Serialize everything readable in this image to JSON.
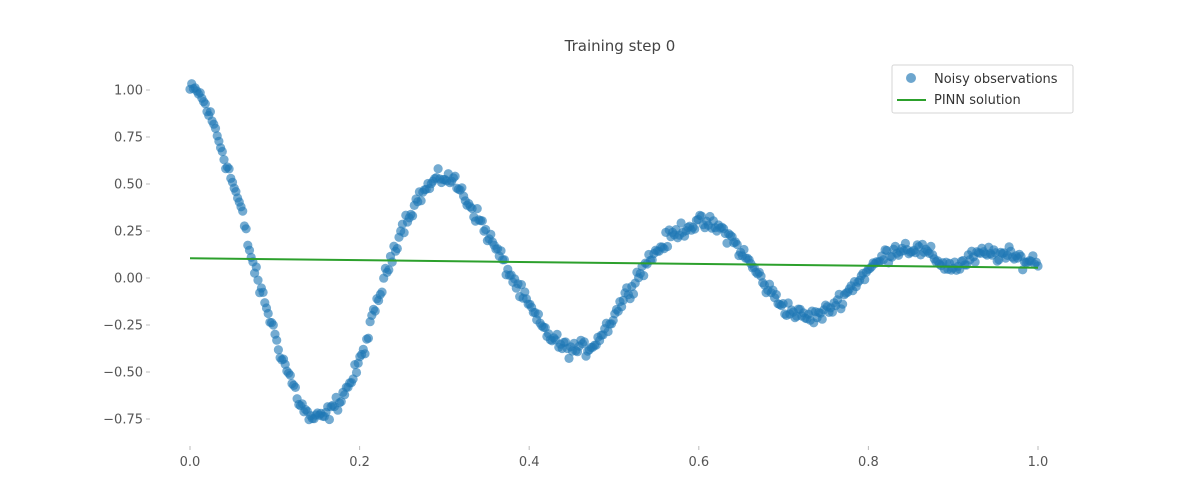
{
  "chart_data": {
    "type": "scatter",
    "title": "Training step 0",
    "xlabel": "",
    "ylabel": "",
    "xlim": [
      -0.05,
      1.05
    ],
    "ylim": [
      -0.85,
      1.15
    ],
    "xticks": [
      0.0,
      0.2,
      0.4,
      0.6,
      0.8,
      1.0
    ],
    "xtick_labels": [
      "0.0",
      "0.2",
      "0.4",
      "0.6",
      "0.8",
      "1.0"
    ],
    "yticks": [
      1.0,
      0.75,
      0.5,
      0.25,
      0.0,
      -0.25,
      -0.5,
      -0.75
    ],
    "ytick_labels": [
      "1.00",
      "0.75",
      "0.50",
      "0.25",
      "0.00",
      "−0.25",
      "−0.50",
      "−0.75"
    ],
    "grid": false,
    "legend_position": "top-right",
    "colors": {
      "observations": "#1f77b4",
      "pinn": "#2ca02c"
    },
    "series": [
      {
        "name": "Noisy observations",
        "kind": "scatter",
        "x": [
          0.0,
          0.01,
          0.02,
          0.03,
          0.04,
          0.05,
          0.06,
          0.07,
          0.08,
          0.09,
          0.1,
          0.11,
          0.12,
          0.13,
          0.14,
          0.15,
          0.16,
          0.17,
          0.18,
          0.19,
          0.2,
          0.21,
          0.22,
          0.23,
          0.24,
          0.25,
          0.26,
          0.27,
          0.28,
          0.29,
          0.3,
          0.31,
          0.32,
          0.33,
          0.34,
          0.35,
          0.36,
          0.37,
          0.38,
          0.39,
          0.4,
          0.41,
          0.42,
          0.43,
          0.44,
          0.45,
          0.46,
          0.47,
          0.48,
          0.49,
          0.5,
          0.51,
          0.52,
          0.53,
          0.54,
          0.55,
          0.56,
          0.57,
          0.58,
          0.59,
          0.6,
          0.61,
          0.62,
          0.63,
          0.64,
          0.65,
          0.66,
          0.67,
          0.68,
          0.69,
          0.7,
          0.71,
          0.72,
          0.73,
          0.74,
          0.75,
          0.76,
          0.77,
          0.78,
          0.79,
          0.8,
          0.81,
          0.82,
          0.83,
          0.84,
          0.85,
          0.86,
          0.87,
          0.88,
          0.89,
          0.9,
          0.91,
          0.92,
          0.93,
          0.94,
          0.95,
          0.96,
          0.97,
          0.98,
          0.99,
          1.0
        ],
        "y": [
          1.0,
          0.99,
          0.9,
          0.79,
          0.65,
          0.51,
          0.37,
          0.15,
          -0.02,
          -0.15,
          -0.3,
          -0.44,
          -0.55,
          -0.67,
          -0.74,
          -0.75,
          -0.73,
          -0.69,
          -0.62,
          -0.55,
          -0.45,
          -0.31,
          -0.14,
          0.0,
          0.15,
          0.27,
          0.35,
          0.43,
          0.48,
          0.52,
          0.54,
          0.52,
          0.46,
          0.39,
          0.32,
          0.24,
          0.16,
          0.08,
          0.0,
          -0.08,
          -0.15,
          -0.23,
          -0.29,
          -0.33,
          -0.37,
          -0.38,
          -0.38,
          -0.37,
          -0.33,
          -0.27,
          -0.2,
          -0.12,
          -0.05,
          0.03,
          0.09,
          0.14,
          0.19,
          0.23,
          0.26,
          0.28,
          0.29,
          0.29,
          0.27,
          0.25,
          0.2,
          0.14,
          0.08,
          0.02,
          -0.05,
          -0.1,
          -0.15,
          -0.18,
          -0.2,
          -0.21,
          -0.2,
          -0.18,
          -0.14,
          -0.1,
          -0.05,
          0.0,
          0.04,
          0.08,
          0.12,
          0.15,
          0.16,
          0.16,
          0.15,
          0.13,
          0.1,
          0.07,
          0.06,
          0.07,
          0.1,
          0.12,
          0.13,
          0.13,
          0.12,
          0.11,
          0.1,
          0.09,
          0.09
        ]
      },
      {
        "name": "PINN solution",
        "kind": "line",
        "x": [
          0.0,
          1.0
        ],
        "y": [
          0.105,
          0.055
        ]
      }
    ]
  }
}
